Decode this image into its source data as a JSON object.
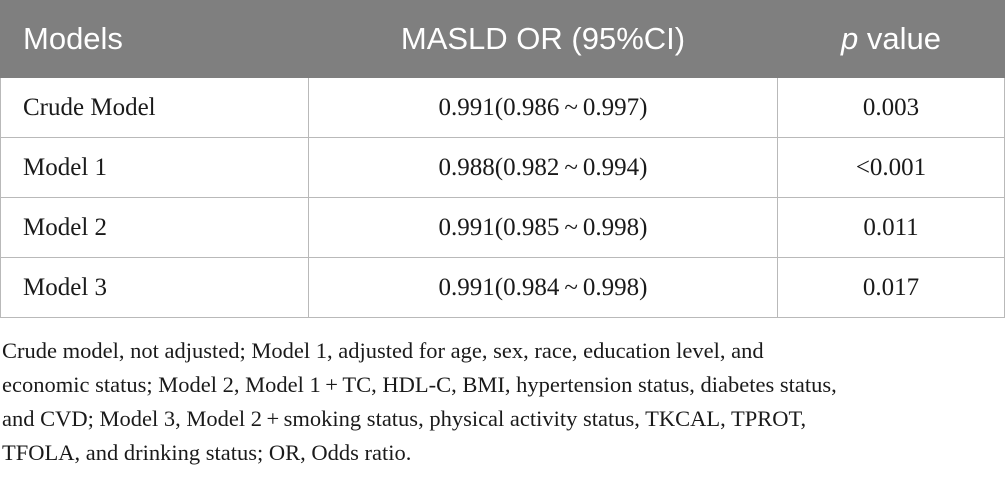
{
  "table": {
    "headers": {
      "models": "Models",
      "or": "MASLD OR (95%CI)",
      "p_italic": "p",
      "p_rest": " value"
    },
    "rows": [
      {
        "model": "Crude Model",
        "or": "0.991(0.986 ~ 0.997)",
        "p": "0.003"
      },
      {
        "model": "Model 1",
        "or": "0.988(0.982 ~ 0.994)",
        "p": "<0.001"
      },
      {
        "model": "Model 2",
        "or": "0.991(0.985 ~ 0.998)",
        "p": "0.011"
      },
      {
        "model": "Model 3",
        "or": "0.991(0.984 ~ 0.998)",
        "p": "0.017"
      }
    ]
  },
  "footnote": {
    "lines": [
      "Crude model, not adjusted; Model 1, adjusted for age, sex, race, education level, and",
      "economic status; Model 2, Model 1 + TC, HDL-C, BMI, hypertension status, diabetes status,",
      "and CVD; Model 3, Model 2 + smoking status, physical activity status, TKCAL, TPROT,",
      "TFOLA, and drinking status; OR, Odds ratio."
    ]
  },
  "colors": {
    "header_bg": "#7f7f7f",
    "header_text": "#ffffff",
    "border": "#b9b9b9",
    "body_text": "#1a1a1a"
  }
}
